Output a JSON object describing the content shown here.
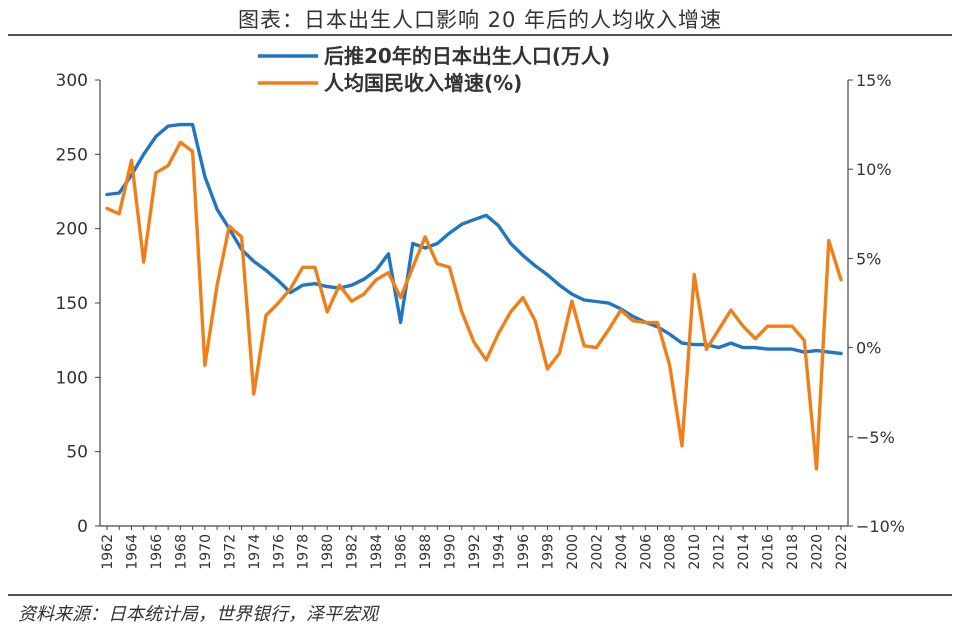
{
  "title": "图表：日本出生人口影响 20 年后的人均收入增速",
  "source": "资料来源：日本统计局，世界银行，泽平宏观",
  "chart_data": {
    "type": "line",
    "x": [
      1962,
      1963,
      1964,
      1965,
      1966,
      1967,
      1968,
      1969,
      1970,
      1971,
      1972,
      1973,
      1974,
      1975,
      1976,
      1977,
      1978,
      1979,
      1980,
      1981,
      1982,
      1983,
      1984,
      1985,
      1986,
      1987,
      1988,
      1989,
      1990,
      1991,
      1992,
      1993,
      1994,
      1995,
      1996,
      1997,
      1998,
      1999,
      2000,
      2001,
      2002,
      2003,
      2004,
      2005,
      2006,
      2007,
      2008,
      2009,
      2010,
      2011,
      2012,
      2013,
      2014,
      2015,
      2016,
      2017,
      2018,
      2019,
      2020,
      2021,
      2022
    ],
    "xticks": [
      "1962",
      "1964",
      "1966",
      "1968",
      "1970",
      "1972",
      "1974",
      "1976",
      "1978",
      "1980",
      "1982",
      "1984",
      "1986",
      "1988",
      "1990",
      "1992",
      "1994",
      "1996",
      "1998",
      "2000",
      "2002",
      "2004",
      "2006",
      "2008",
      "2010",
      "2012",
      "2014",
      "2016",
      "2018",
      "2020",
      "2022"
    ],
    "y_left": {
      "ylim": [
        0,
        300
      ],
      "ticks": [
        "0",
        "50",
        "100",
        "150",
        "200",
        "250",
        "300"
      ]
    },
    "y_right": {
      "ylim": [
        -10,
        15
      ],
      "ticks": [
        "−10%",
        "−5%",
        "0%",
        "5%",
        "10%",
        "15%"
      ]
    },
    "series": [
      {
        "name": "后推20年的日本出生人口(万人)",
        "axis": "left",
        "color": "#1f77c4",
        "values": [
          223,
          224,
          236,
          250,
          262,
          269,
          270,
          270,
          235,
          213,
          200,
          186,
          178,
          172,
          165,
          157,
          162,
          163,
          161,
          160,
          162,
          166,
          172,
          183,
          137,
          190,
          187,
          190,
          197,
          203,
          206,
          209,
          202,
          190,
          182,
          175,
          169,
          162,
          156,
          152,
          151,
          150,
          146,
          141,
          137,
          134,
          129,
          123,
          122,
          122,
          120,
          123,
          120,
          120,
          119,
          119,
          119,
          117,
          118,
          117,
          116
        ]
      },
      {
        "name": "人均国民收入增速(%)",
        "axis": "right",
        "color": "#f07f1a",
        "values": [
          7.8,
          7.5,
          10.5,
          4.8,
          9.8,
          10.2,
          11.5,
          11.0,
          -1.0,
          3.5,
          6.8,
          6.2,
          -2.6,
          1.8,
          2.5,
          3.3,
          4.5,
          4.5,
          2.0,
          3.5,
          2.6,
          3.0,
          3.8,
          4.2,
          2.8,
          4.5,
          6.2,
          4.7,
          4.5,
          2.0,
          0.3,
          -0.7,
          0.8,
          2.0,
          2.8,
          1.5,
          -1.2,
          -0.3,
          2.6,
          0.1,
          0.0,
          1.0,
          2.1,
          1.5,
          1.4,
          1.4,
          -1.0,
          -5.5,
          4.1,
          -0.1,
          1.0,
          2.1,
          1.2,
          0.5,
          1.2,
          1.2,
          1.2,
          0.4,
          -6.8,
          6.0,
          3.8
        ]
      }
    ]
  }
}
